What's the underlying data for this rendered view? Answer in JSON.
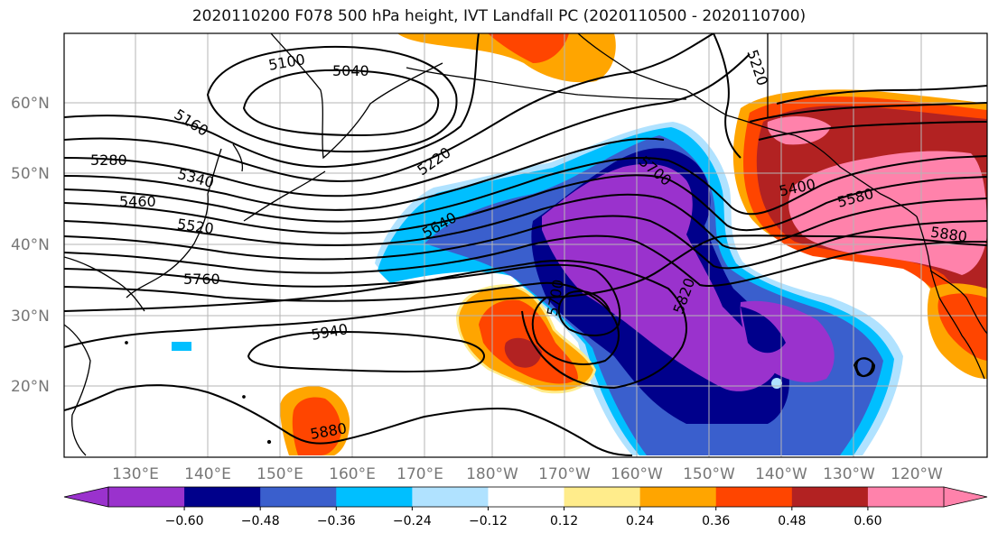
{
  "title": "2020110200 F078 500 hPa height, IVT Landfall PC (2020110500 - 2020110700)",
  "lat_labels": [
    "60°N",
    "50°N",
    "40°N",
    "30°N",
    "20°N"
  ],
  "lon_labels": [
    "130°E",
    "140°E",
    "150°E",
    "160°E",
    "170°E",
    "180°W",
    "170°W",
    "160°W",
    "150°W",
    "140°W",
    "130°W",
    "120°W"
  ],
  "contour_labels": [
    "5100",
    "5040",
    "5220",
    "5160",
    "5280",
    "5340",
    "5460",
    "5520",
    "5220",
    "5640",
    "5700",
    "5760",
    "5700",
    "5820",
    "5940",
    "5880",
    "5400",
    "5580",
    "5880"
  ],
  "colorbar": {
    "ticks": [
      "−0.60",
      "−0.48",
      "−0.36",
      "−0.24",
      "−0.12",
      "0.12",
      "0.24",
      "0.36",
      "0.48",
      "0.60"
    ],
    "colors": [
      "#9a32cd",
      "#00008b",
      "#3a5fcd",
      "#00bfff",
      "#b0e2ff",
      "#ffffff",
      "#ffec8b",
      "#ffa500",
      "#ff4500",
      "#b22222",
      "#ff82ab"
    ]
  },
  "colors": {
    "purple": "#9a32cd",
    "navy": "#00008b",
    "royal": "#3a5fcd",
    "sky": "#00bfff",
    "lightblue": "#b0e2ff",
    "yellow": "#ffec8b",
    "orange": "#ffa500",
    "orangered": "#ff4500",
    "firebrick": "#b22222",
    "pink": "#ff82ab"
  }
}
